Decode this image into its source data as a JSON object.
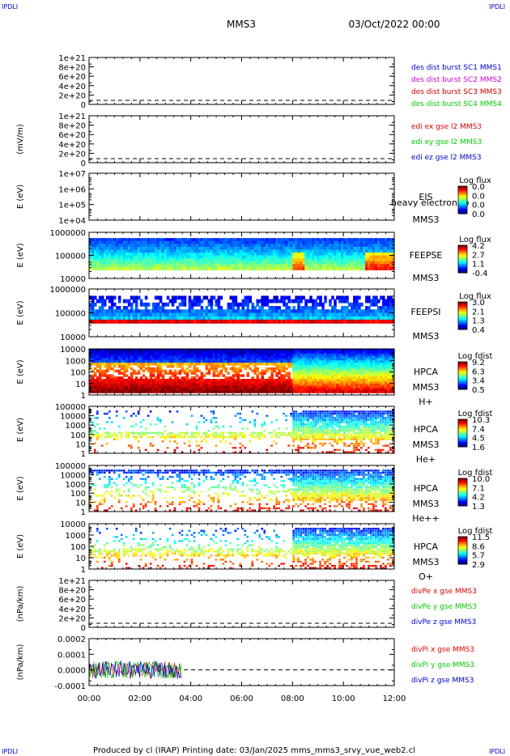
{
  "header": {
    "title": "MMS3",
    "date": "03/Oct/2022 00:00",
    "corner_tl": "IPDLI",
    "corner_tr": "IPDLI",
    "corner_bl": "IPDLI",
    "corner_br": "IPDLI"
  },
  "footer": {
    "text": "Produced by cl (IRAP)   Printing date: 03/Jan/2025   mms_mms3_srvy_vue_web2.cl"
  },
  "colors": {
    "red": "#dd0000",
    "green": "#00cc00",
    "blue": "#0000cc",
    "magenta": "#cc00cc",
    "darkred": "#cc0000"
  },
  "chart_data": [
    {
      "type": "line",
      "ylabel": "",
      "yticks": [
        "1e+21",
        "8e+20",
        "6e+20",
        "4e+20",
        "2e+20",
        "0"
      ],
      "legend": [
        {
          "text": "des dist burst SC1 MMS1",
          "color": "#0000cc"
        },
        {
          "text": "des dist burst SC2 MMS2",
          "color": "#cc00cc"
        },
        {
          "text": "des dist burst SC3 MMS3",
          "color": "#cc0000"
        },
        {
          "text": "des dist burst SC4 MMS4",
          "color": "#00cc00"
        }
      ],
      "series": []
    },
    {
      "type": "line",
      "ylabel": "(mV/m)",
      "yticks": [
        "1e+21",
        "8e+20",
        "6e+20",
        "4e+20",
        "2e+20",
        "0"
      ],
      "legend": [
        {
          "text": "edi ex gse l2 MMS3",
          "color": "#dd0000"
        },
        {
          "text": "edi ey gse l2 MMS3",
          "color": "#00cc00"
        },
        {
          "text": "edi ez gse l2 MMS3",
          "color": "#0000cc"
        }
      ],
      "series": []
    },
    {
      "type": "heatmap",
      "ylabel": "E (eV)",
      "yticks": [
        "1e+07",
        "1e+06",
        "1e+05",
        "1e+04"
      ],
      "instrument": [
        "EIS",
        "MMS3"
      ],
      "overlay_text": "heavy electron to",
      "colorbar": {
        "label": "Log flux",
        "ticks": [
          "0.0",
          "0.0",
          "0.0",
          "0.0"
        ]
      }
    },
    {
      "type": "heatmap",
      "ylabel": "E (eV)",
      "yticks": [
        "1000000",
        "100000",
        "10000"
      ],
      "instrument": [
        "FEEPSE",
        "MMS3"
      ],
      "colorbar": {
        "label": "Log flux",
        "ticks": [
          "4.2",
          "2.7",
          "1.1",
          "-0.4"
        ]
      }
    },
    {
      "type": "heatmap",
      "ylabel": "E (eV)",
      "yticks": [
        "1000000",
        "100000",
        "10000"
      ],
      "instrument": [
        "FEEPSI",
        "MMS3"
      ],
      "colorbar": {
        "label": "Log flux",
        "ticks": [
          "3.0",
          "2.1",
          "1.3",
          "0.4"
        ]
      }
    },
    {
      "type": "heatmap",
      "ylabel": "E (eV)",
      "yticks": [
        "10000",
        "1000",
        "100",
        "10",
        "1"
      ],
      "instrument": [
        "HPCA",
        "MMS3",
        "H+"
      ],
      "colorbar": {
        "label": "Log fdist",
        "ticks": [
          "9.2",
          "6.3",
          "3.4",
          "0.5"
        ]
      }
    },
    {
      "type": "heatmap",
      "ylabel": "E (eV)",
      "yticks": [
        "100000",
        "10000",
        "1000",
        "100",
        "10",
        "1"
      ],
      "instrument": [
        "HPCA",
        "MMS3",
        "He+"
      ],
      "colorbar": {
        "label": "Log fdist",
        "ticks": [
          "10.3",
          "7.4",
          "4.5",
          "1.6"
        ]
      }
    },
    {
      "type": "heatmap",
      "ylabel": "E (eV)",
      "yticks": [
        "100000",
        "10000",
        "1000",
        "100",
        "10",
        "1"
      ],
      "instrument": [
        "HPCA",
        "MMS3",
        "He++"
      ],
      "colorbar": {
        "label": "Log fdist",
        "ticks": [
          "10.0",
          "7.1",
          "4.2",
          "1.3"
        ]
      }
    },
    {
      "type": "heatmap",
      "ylabel": "E (eV)",
      "yticks": [
        "10000",
        "1000",
        "100",
        "10",
        "1"
      ],
      "instrument": [
        "HPCA",
        "MMS3",
        "O+"
      ],
      "colorbar": {
        "label": "Log fdist",
        "ticks": [
          "11.5",
          "8.6",
          "5.7",
          "2.9"
        ]
      }
    },
    {
      "type": "line",
      "ylabel": "(nPa/km)",
      "yticks": [
        "1e+21",
        "8e+20",
        "6e+20",
        "4e+20",
        "2e+20",
        "0"
      ],
      "legend": [
        {
          "text": "divPe x gse MMS3",
          "color": "#dd0000"
        },
        {
          "text": "divPe y gse MMS3",
          "color": "#00cc00"
        },
        {
          "text": "divPe z gse MMS3",
          "color": "#0000cc"
        }
      ],
      "series": []
    },
    {
      "type": "line",
      "ylabel": "(nPa/km)",
      "yticks": [
        "0.0002",
        "0.0001",
        "0.0000",
        "-0.0001"
      ],
      "legend": [
        {
          "text": "divPi x gse MMS3",
          "color": "#dd0000"
        },
        {
          "text": "divPi y gse MMS3",
          "color": "#00cc00"
        },
        {
          "text": "divPi z gse MMS3",
          "color": "#0000cc"
        }
      ],
      "data_span": [
        "00:00",
        "03:40"
      ],
      "series": [
        {
          "name": "divPi x gse MMS3",
          "color": "#dd0000"
        },
        {
          "name": "divPi y gse MMS3",
          "color": "#00cc00"
        },
        {
          "name": "divPi z gse MMS3",
          "color": "#0000cc"
        }
      ]
    }
  ],
  "xaxis": {
    "ticks": [
      "00:00",
      "02:00",
      "04:00",
      "06:00",
      "08:00",
      "10:00",
      "12:00"
    ]
  }
}
